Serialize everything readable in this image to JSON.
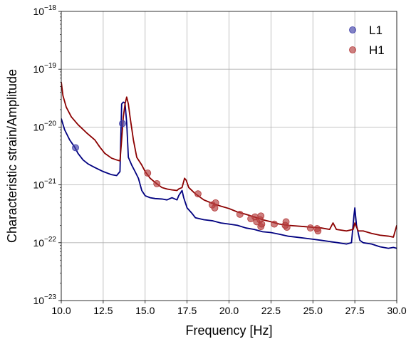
{
  "chart_data": {
    "type": "line",
    "xlabel": "Frequency [Hz]",
    "ylabel": "Characteristic strain/Amplitude",
    "xlim": [
      10.0,
      30.0
    ],
    "ylim_log10": [
      -23,
      -18
    ],
    "yscale": "log",
    "grid": true,
    "legend_position": "top-right",
    "x_ticks": [
      "10.0",
      "12.5",
      "15.0",
      "17.5",
      "20.0",
      "22.5",
      "25.0",
      "27.5",
      "30.0"
    ],
    "y_ticks": [
      {
        "base": "10",
        "exp": "−23"
      },
      {
        "base": "10",
        "exp": "−22"
      },
      {
        "base": "10",
        "exp": "−21"
      },
      {
        "base": "10",
        "exp": "−20"
      },
      {
        "base": "10",
        "exp": "−19"
      },
      {
        "base": "10",
        "exp": "−18"
      }
    ],
    "curves": [
      {
        "color": "#000080",
        "points": [
          [
            10.0,
            1.4e-20
          ],
          [
            10.2,
            9e-21
          ],
          [
            10.5,
            6e-21
          ],
          [
            10.8,
            4.5e-21
          ],
          [
            11.0,
            3.5e-21
          ],
          [
            11.3,
            2.7e-21
          ],
          [
            11.6,
            2.3e-21
          ],
          [
            12.0,
            2e-21
          ],
          [
            12.5,
            1.7e-21
          ],
          [
            13.0,
            1.5e-21
          ],
          [
            13.3,
            1.45e-21
          ],
          [
            13.5,
            1.7e-21
          ],
          [
            13.6,
            2.5e-20
          ],
          [
            13.7,
            2.7e-20
          ],
          [
            13.8,
            2.6e-20
          ],
          [
            13.9,
            1.2e-20
          ],
          [
            14.0,
            3e-21
          ],
          [
            14.2,
            2.2e-21
          ],
          [
            14.4,
            1.7e-21
          ],
          [
            14.6,
            1.3e-21
          ],
          [
            14.8,
            8e-22
          ],
          [
            15.0,
            6.5e-22
          ],
          [
            15.3,
            6e-22
          ],
          [
            15.6,
            5.8e-22
          ],
          [
            16.0,
            5.7e-22
          ],
          [
            16.3,
            5.5e-22
          ],
          [
            16.6,
            6e-22
          ],
          [
            16.9,
            5.5e-22
          ],
          [
            17.0,
            6.5e-22
          ],
          [
            17.2,
            8e-22
          ],
          [
            17.3,
            6e-22
          ],
          [
            17.5,
            4e-22
          ],
          [
            17.8,
            3.2e-22
          ],
          [
            18.0,
            2.7e-22
          ],
          [
            18.5,
            2.5e-22
          ],
          [
            19.0,
            2.4e-22
          ],
          [
            19.5,
            2.2e-22
          ],
          [
            20.0,
            2.1e-22
          ],
          [
            20.5,
            2e-22
          ],
          [
            21.0,
            1.8e-22
          ],
          [
            21.5,
            1.7e-22
          ],
          [
            22.0,
            1.55e-22
          ],
          [
            22.5,
            1.5e-22
          ],
          [
            23.0,
            1.4e-22
          ],
          [
            23.5,
            1.3e-22
          ],
          [
            24.0,
            1.25e-22
          ],
          [
            24.5,
            1.2e-22
          ],
          [
            25.0,
            1.15e-22
          ],
          [
            25.5,
            1.1e-22
          ],
          [
            26.0,
            1.05e-22
          ],
          [
            26.5,
            1e-22
          ],
          [
            27.0,
            9.5e-23
          ],
          [
            27.3,
            1e-22
          ],
          [
            27.45,
            3e-22
          ],
          [
            27.5,
            4e-22
          ],
          [
            27.6,
            2e-22
          ],
          [
            27.8,
            1.1e-22
          ],
          [
            28.0,
            1e-22
          ],
          [
            28.5,
            9.5e-23
          ],
          [
            29.0,
            8.5e-23
          ],
          [
            29.5,
            8e-23
          ],
          [
            29.8,
            8.3e-23
          ],
          [
            30.0,
            8e-23
          ]
        ]
      },
      {
        "color": "#8b0000",
        "points": [
          [
            10.0,
            6e-20
          ],
          [
            10.1,
            3.5e-20
          ],
          [
            10.3,
            2.2e-20
          ],
          [
            10.6,
            1.5e-20
          ],
          [
            11.0,
            1.1e-20
          ],
          [
            11.5,
            8e-21
          ],
          [
            12.0,
            6e-21
          ],
          [
            12.3,
            4.5e-21
          ],
          [
            12.6,
            3.5e-21
          ],
          [
            13.0,
            2.9e-21
          ],
          [
            13.3,
            2.7e-21
          ],
          [
            13.5,
            2.6e-21
          ],
          [
            13.6,
            6e-21
          ],
          [
            13.7,
            1.5e-20
          ],
          [
            13.8,
            2.5e-20
          ],
          [
            13.9,
            3.3e-20
          ],
          [
            14.0,
            2.5e-20
          ],
          [
            14.1,
            1.5e-20
          ],
          [
            14.3,
            6e-21
          ],
          [
            14.5,
            3e-21
          ],
          [
            14.8,
            2.2e-21
          ],
          [
            15.0,
            1.7e-21
          ],
          [
            15.3,
            1.3e-21
          ],
          [
            15.6,
            1.1e-21
          ],
          [
            16.0,
            9e-22
          ],
          [
            16.3,
            8.5e-22
          ],
          [
            16.6,
            8.2e-22
          ],
          [
            16.9,
            8e-22
          ],
          [
            17.0,
            8.5e-22
          ],
          [
            17.2,
            9e-22
          ],
          [
            17.35,
            1.3e-21
          ],
          [
            17.45,
            1.2e-21
          ],
          [
            17.6,
            9e-22
          ],
          [
            18.0,
            7e-22
          ],
          [
            18.5,
            5.5e-22
          ],
          [
            19.0,
            4.8e-22
          ],
          [
            19.5,
            4.3e-22
          ],
          [
            20.0,
            3.9e-22
          ],
          [
            20.5,
            3.4e-22
          ],
          [
            21.0,
            3.1e-22
          ],
          [
            21.5,
            2.8e-22
          ],
          [
            22.0,
            2.5e-22
          ],
          [
            22.5,
            2.3e-22
          ],
          [
            23.0,
            2.1e-22
          ],
          [
            23.5,
            2e-22
          ],
          [
            24.0,
            1.95e-22
          ],
          [
            24.5,
            1.9e-22
          ],
          [
            25.0,
            1.85e-22
          ],
          [
            25.5,
            1.8e-22
          ],
          [
            26.0,
            1.7e-22
          ],
          [
            26.2,
            2.2e-22
          ],
          [
            26.4,
            1.7e-22
          ],
          [
            27.0,
            1.6e-22
          ],
          [
            27.4,
            1.7e-22
          ],
          [
            27.5,
            2.2e-22
          ],
          [
            27.7,
            1.6e-22
          ],
          [
            28.0,
            1.6e-22
          ],
          [
            28.5,
            1.45e-22
          ],
          [
            29.0,
            1.35e-22
          ],
          [
            29.5,
            1.3e-22
          ],
          [
            29.8,
            1.25e-22
          ],
          [
            30.0,
            2e-22
          ]
        ]
      }
    ],
    "series": [
      {
        "name": "L1",
        "color": "#3f3fa8",
        "points": [
          [
            10.85,
            4.4e-21
          ],
          [
            13.65,
            1.15e-20
          ]
        ]
      },
      {
        "name": "H1",
        "color": "#b33a3a",
        "points": [
          [
            15.15,
            1.6e-21
          ],
          [
            15.7,
            1.05e-21
          ],
          [
            18.15,
            7e-22
          ],
          [
            19.0,
            4.5e-22
          ],
          [
            19.15,
            4e-22
          ],
          [
            19.2,
            4.9e-22
          ],
          [
            20.65,
            3.1e-22
          ],
          [
            21.3,
            2.6e-22
          ],
          [
            21.55,
            2.8e-22
          ],
          [
            21.65,
            2.3e-22
          ],
          [
            21.85,
            2.5e-22
          ],
          [
            21.9,
            2.9e-22
          ],
          [
            21.95,
            2.1e-22
          ],
          [
            21.9,
            1.9e-22
          ],
          [
            22.7,
            2.1e-22
          ],
          [
            23.35,
            2e-22
          ],
          [
            23.4,
            2.3e-22
          ],
          [
            23.45,
            1.85e-22
          ],
          [
            24.85,
            1.8e-22
          ],
          [
            25.25,
            1.75e-22
          ],
          [
            25.3,
            1.6e-22
          ]
        ]
      }
    ]
  }
}
